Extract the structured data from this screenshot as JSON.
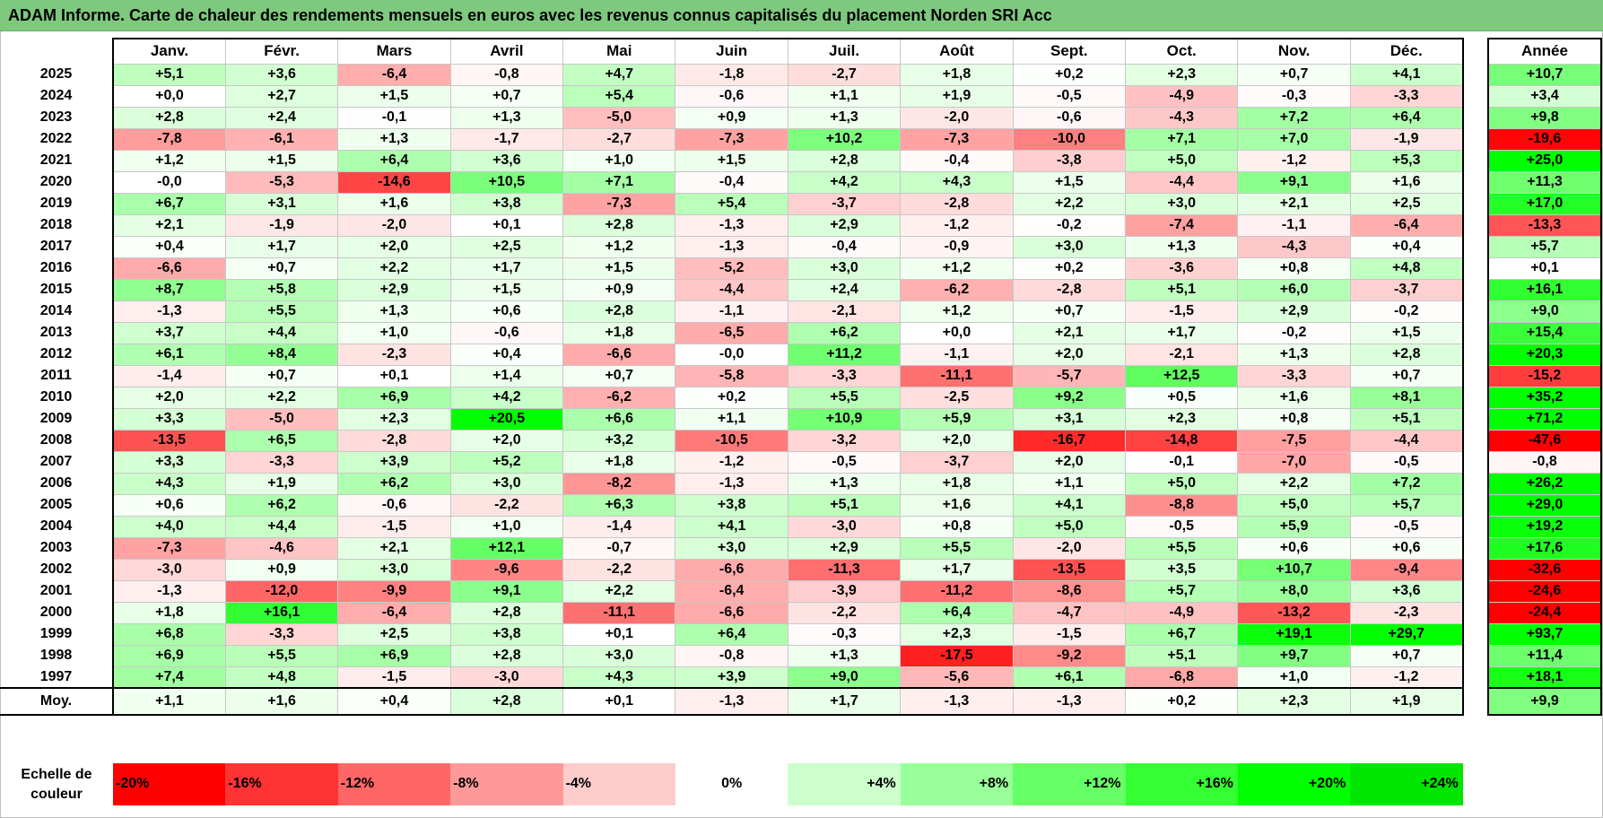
{
  "title": "ADAM Informe. Carte de chaleur des rendements mensuels en euros avec les revenus connus capitalisés du placement Norden SRI Acc",
  "chart_data": {
    "type": "heatmap",
    "title": "ADAM Informe. Carte de chaleur des rendements mensuels en euros avec les revenus connus capitalisés du placement Norden SRI Acc",
    "months": [
      "Janv.",
      "Févr.",
      "Mars",
      "Avril",
      "Mai",
      "Juin",
      "Juil.",
      "Août",
      "Sept.",
      "Oct.",
      "Nov.",
      "Déc."
    ],
    "annual_header": "Année",
    "rows": [
      {
        "year": "2025",
        "months": [
          "+5,1",
          "+3,6",
          "-6,4",
          "-0,8",
          "+4,7",
          "-1,8",
          "-2,7",
          "+1,8",
          "+0,2",
          "+2,3",
          "+0,7",
          "+4,1"
        ],
        "annual": "+10,7"
      },
      {
        "year": "2024",
        "months": [
          "+0,0",
          "+2,7",
          "+1,5",
          "+0,7",
          "+5,4",
          "-0,6",
          "+1,1",
          "+1,9",
          "-0,5",
          "-4,9",
          "-0,3",
          "-3,3"
        ],
        "annual": "+3,4"
      },
      {
        "year": "2023",
        "months": [
          "+2,8",
          "+2,4",
          "-0,1",
          "+1,3",
          "-5,0",
          "+0,9",
          "+1,3",
          "-2,0",
          "-0,6",
          "-4,3",
          "+7,2",
          "+6,4"
        ],
        "annual": "+9,8"
      },
      {
        "year": "2022",
        "months": [
          "-7,8",
          "-6,1",
          "+1,3",
          "-1,7",
          "-2,7",
          "-7,3",
          "+10,2",
          "-7,3",
          "-10,0",
          "+7,1",
          "+7,0",
          "-1,9"
        ],
        "annual": "-19,6"
      },
      {
        "year": "2021",
        "months": [
          "+1,2",
          "+1,5",
          "+6,4",
          "+3,6",
          "+1,0",
          "+1,5",
          "+2,8",
          "-0,4",
          "-3,8",
          "+5,0",
          "-1,2",
          "+5,3"
        ],
        "annual": "+25,0"
      },
      {
        "year": "2020",
        "months": [
          "-0,0",
          "-5,3",
          "-14,6",
          "+10,5",
          "+7,1",
          "-0,4",
          "+4,2",
          "+4,3",
          "+1,5",
          "-4,4",
          "+9,1",
          "+1,6"
        ],
        "annual": "+11,3"
      },
      {
        "year": "2019",
        "months": [
          "+6,7",
          "+3,1",
          "+1,6",
          "+3,8",
          "-7,3",
          "+5,4",
          "-3,7",
          "-2,8",
          "+2,2",
          "+3,0",
          "+2,1",
          "+2,5"
        ],
        "annual": "+17,0"
      },
      {
        "year": "2018",
        "months": [
          "+2,1",
          "-1,9",
          "-2,0",
          "+0,1",
          "+2,8",
          "-1,3",
          "+2,9",
          "-1,2",
          "-0,2",
          "-7,4",
          "-1,1",
          "-6,4"
        ],
        "annual": "-13,3"
      },
      {
        "year": "2017",
        "months": [
          "+0,4",
          "+1,7",
          "+2,0",
          "+2,5",
          "+1,2",
          "-1,3",
          "-0,4",
          "-0,9",
          "+3,0",
          "+1,3",
          "-4,3",
          "+0,4"
        ],
        "annual": "+5,7"
      },
      {
        "year": "2016",
        "months": [
          "-6,6",
          "+0,7",
          "+2,2",
          "+1,7",
          "+1,5",
          "-5,2",
          "+3,0",
          "+1,2",
          "+0,2",
          "-3,6",
          "+0,8",
          "+4,8"
        ],
        "annual": "+0,1"
      },
      {
        "year": "2015",
        "months": [
          "+8,7",
          "+5,8",
          "+2,9",
          "+1,5",
          "+0,9",
          "-4,4",
          "+2,4",
          "-6,2",
          "-2,8",
          "+5,1",
          "+6,0",
          "-3,7"
        ],
        "annual": "+16,1"
      },
      {
        "year": "2014",
        "months": [
          "-1,3",
          "+5,5",
          "+1,3",
          "+0,6",
          "+2,8",
          "-1,1",
          "-2,1",
          "+1,2",
          "+0,7",
          "-1,5",
          "+2,9",
          "-0,2"
        ],
        "annual": "+9,0"
      },
      {
        "year": "2013",
        "months": [
          "+3,7",
          "+4,4",
          "+1,0",
          "-0,6",
          "+1,8",
          "-6,5",
          "+6,2",
          "+0,0",
          "+2,1",
          "+1,7",
          "-0,2",
          "+1,5"
        ],
        "annual": "+15,4"
      },
      {
        "year": "2012",
        "months": [
          "+6,1",
          "+8,4",
          "-2,3",
          "+0,4",
          "-6,6",
          "-0,0",
          "+11,2",
          "-1,1",
          "+2,0",
          "-2,1",
          "+1,3",
          "+2,8"
        ],
        "annual": "+20,3"
      },
      {
        "year": "2011",
        "months": [
          "-1,4",
          "+0,7",
          "+0,1",
          "+1,4",
          "+0,7",
          "-5,8",
          "-3,3",
          "-11,1",
          "-5,7",
          "+12,5",
          "-3,3",
          "+0,7"
        ],
        "annual": "-15,2"
      },
      {
        "year": "2010",
        "months": [
          "+2,0",
          "+2,2",
          "+6,9",
          "+4,2",
          "-6,2",
          "+0,2",
          "+5,5",
          "-2,5",
          "+9,2",
          "+0,5",
          "+1,6",
          "+8,1"
        ],
        "annual": "+35,2"
      },
      {
        "year": "2009",
        "months": [
          "+3,3",
          "-5,0",
          "+2,3",
          "+20,5",
          "+6,6",
          "+1,1",
          "+10,9",
          "+5,9",
          "+3,1",
          "+2,3",
          "+0,8",
          "+5,1"
        ],
        "annual": "+71,2"
      },
      {
        "year": "2008",
        "months": [
          "-13,5",
          "+6,5",
          "-2,8",
          "+2,0",
          "+3,2",
          "-10,5",
          "-3,2",
          "+2,0",
          "-16,7",
          "-14,8",
          "-7,5",
          "-4,4"
        ],
        "annual": "-47,6"
      },
      {
        "year": "2007",
        "months": [
          "+3,3",
          "-3,3",
          "+3,9",
          "+5,2",
          "+1,8",
          "-1,2",
          "-0,5",
          "-3,7",
          "+2,0",
          "-0,1",
          "-7,0",
          "-0,5"
        ],
        "annual": "-0,8"
      },
      {
        "year": "2006",
        "months": [
          "+4,3",
          "+1,9",
          "+6,2",
          "+3,0",
          "-8,2",
          "-1,3",
          "+1,3",
          "+1,8",
          "+1,1",
          "+5,0",
          "+2,2",
          "+7,2"
        ],
        "annual": "+26,2"
      },
      {
        "year": "2005",
        "months": [
          "+0,6",
          "+6,2",
          "-0,6",
          "-2,2",
          "+6,3",
          "+3,8",
          "+5,1",
          "+1,6",
          "+4,1",
          "-8,8",
          "+5,0",
          "+5,7"
        ],
        "annual": "+29,0"
      },
      {
        "year": "2004",
        "months": [
          "+4,0",
          "+4,4",
          "-1,5",
          "+1,0",
          "-1,4",
          "+4,1",
          "-3,0",
          "+0,8",
          "+5,0",
          "-0,5",
          "+5,9",
          "-0,5"
        ],
        "annual": "+19,2"
      },
      {
        "year": "2003",
        "months": [
          "-7,3",
          "-4,6",
          "+2,1",
          "+12,1",
          "-0,7",
          "+3,0",
          "+2,9",
          "+5,5",
          "-2,0",
          "+5,5",
          "+0,6",
          "+0,6"
        ],
        "annual": "+17,6"
      },
      {
        "year": "2002",
        "months": [
          "-3,0",
          "+0,9",
          "+3,0",
          "-9,6",
          "-2,2",
          "-6,6",
          "-11,3",
          "+1,7",
          "-13,5",
          "+3,5",
          "+10,7",
          "-9,4"
        ],
        "annual": "-32,6"
      },
      {
        "year": "2001",
        "months": [
          "-1,3",
          "-12,0",
          "-9,9",
          "+9,1",
          "+2,2",
          "-6,4",
          "-3,9",
          "-11,2",
          "-8,6",
          "+5,7",
          "+8,0",
          "+3,6"
        ],
        "annual": "-24,6"
      },
      {
        "year": "2000",
        "months": [
          "+1,8",
          "+16,1",
          "-6,4",
          "+2,8",
          "-11,1",
          "-6,6",
          "-2,2",
          "+6,4",
          "-4,7",
          "-4,9",
          "-13,2",
          "-2,3"
        ],
        "annual": "-24,4"
      },
      {
        "year": "1999",
        "months": [
          "+6,8",
          "-3,3",
          "+2,5",
          "+3,8",
          "+0,1",
          "+6,4",
          "-0,3",
          "+2,3",
          "-1,5",
          "+6,7",
          "+19,1",
          "+29,7"
        ],
        "annual": "+93,7"
      },
      {
        "year": "1998",
        "months": [
          "+6,9",
          "+5,5",
          "+6,9",
          "+2,8",
          "+3,0",
          "-0,8",
          "+1,3",
          "-17,5",
          "-9,2",
          "+5,1",
          "+9,7",
          "+0,7"
        ],
        "annual": "+11,4"
      },
      {
        "year": "1997",
        "months": [
          "+7,4",
          "+4,8",
          "-1,5",
          "-3,0",
          "+4,3",
          "+3,9",
          "+9,0",
          "-5,6",
          "+6,1",
          "-6,8",
          "+1,0",
          "-1,2"
        ],
        "annual": "+18,1"
      }
    ],
    "average": {
      "label": "Moy.",
      "months": [
        "+1,1",
        "+1,6",
        "+0,4",
        "+2,8",
        "+0,1",
        "-1,3",
        "+1,7",
        "-1,3",
        "-1,3",
        "+0,2",
        "+2,3",
        "+1,9"
      ],
      "annual": "+9,9"
    },
    "color_scale": {
      "label": "Echelle de couleur",
      "stops": [
        {
          "label": "-20%",
          "value": -20,
          "color": "#ff0000"
        },
        {
          "label": "-16%",
          "value": -16,
          "color": "#ff3333"
        },
        {
          "label": "-12%",
          "value": -12,
          "color": "#ff6666"
        },
        {
          "label": "-8%",
          "value": -8,
          "color": "#ff9999"
        },
        {
          "label": "-4%",
          "value": -4,
          "color": "#ffcccc"
        },
        {
          "label": "0%",
          "value": 0,
          "color": "#ffffff"
        },
        {
          "label": "+4%",
          "value": 4,
          "color": "#ccffcc"
        },
        {
          "label": "+8%",
          "value": 8,
          "color": "#99ff99"
        },
        {
          "label": "+12%",
          "value": 12,
          "color": "#66ff66"
        },
        {
          "label": "+16%",
          "value": 16,
          "color": "#33ff33"
        },
        {
          "label": "+20%",
          "value": 20,
          "color": "#00ff00"
        },
        {
          "label": "+24%",
          "value": 24,
          "color": "#00e600"
        }
      ]
    }
  }
}
